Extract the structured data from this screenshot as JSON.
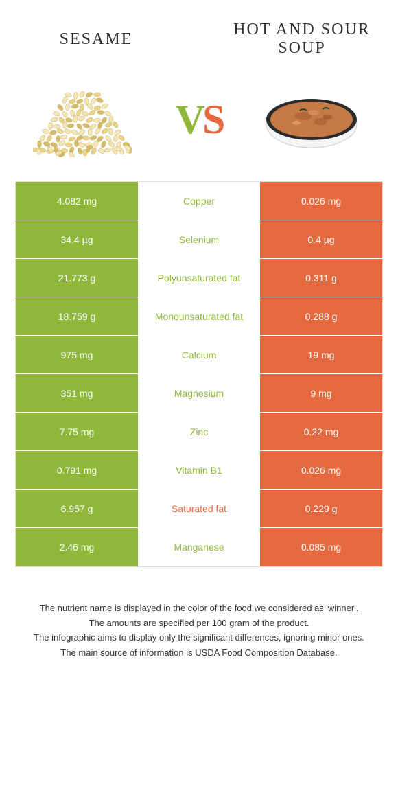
{
  "colors": {
    "left": "#8fb83b",
    "right": "#e5693e",
    "bg": "#ffffff",
    "text": "#333333",
    "seed_light": "#f5e6b8",
    "seed_mid": "#e8d48a",
    "seed_dark": "#d4bc6a",
    "soup_bowl": "#f5f5f5",
    "soup_rim": "#2a2a2a",
    "soup_liquid": "#c67845",
    "soup_dark": "#a85a32"
  },
  "header": {
    "left_title": "Sesame",
    "right_title": "Hot and sour soup",
    "vs_v": "V",
    "vs_s": "S"
  },
  "rows": [
    {
      "nutrient": "Copper",
      "left": "4.082 mg",
      "right": "0.026 mg",
      "winner": "left"
    },
    {
      "nutrient": "Selenium",
      "left": "34.4 µg",
      "right": "0.4 µg",
      "winner": "left"
    },
    {
      "nutrient": "Polyunsaturated fat",
      "left": "21.773 g",
      "right": "0.311 g",
      "winner": "left"
    },
    {
      "nutrient": "Monounsaturated fat",
      "left": "18.759 g",
      "right": "0.288 g",
      "winner": "left"
    },
    {
      "nutrient": "Calcium",
      "left": "975 mg",
      "right": "19 mg",
      "winner": "left"
    },
    {
      "nutrient": "Magnesium",
      "left": "351 mg",
      "right": "9 mg",
      "winner": "left"
    },
    {
      "nutrient": "Zinc",
      "left": "7.75 mg",
      "right": "0.22 mg",
      "winner": "left"
    },
    {
      "nutrient": "Vitamin B1",
      "left": "0.791 mg",
      "right": "0.026 mg",
      "winner": "left"
    },
    {
      "nutrient": "Saturated fat",
      "left": "6.957 g",
      "right": "0.229 g",
      "winner": "right"
    },
    {
      "nutrient": "Manganese",
      "left": "2.46 mg",
      "right": "0.085 mg",
      "winner": "left"
    }
  ],
  "footer": {
    "line1": "The nutrient name is displayed in the color of the food we considered as 'winner'.",
    "line2": "The amounts are specified per 100 gram of the product.",
    "line3": "The infographic aims to display only the significant differences, ignoring minor ones.",
    "line4": "The main source of information is USDA Food Composition Database."
  }
}
